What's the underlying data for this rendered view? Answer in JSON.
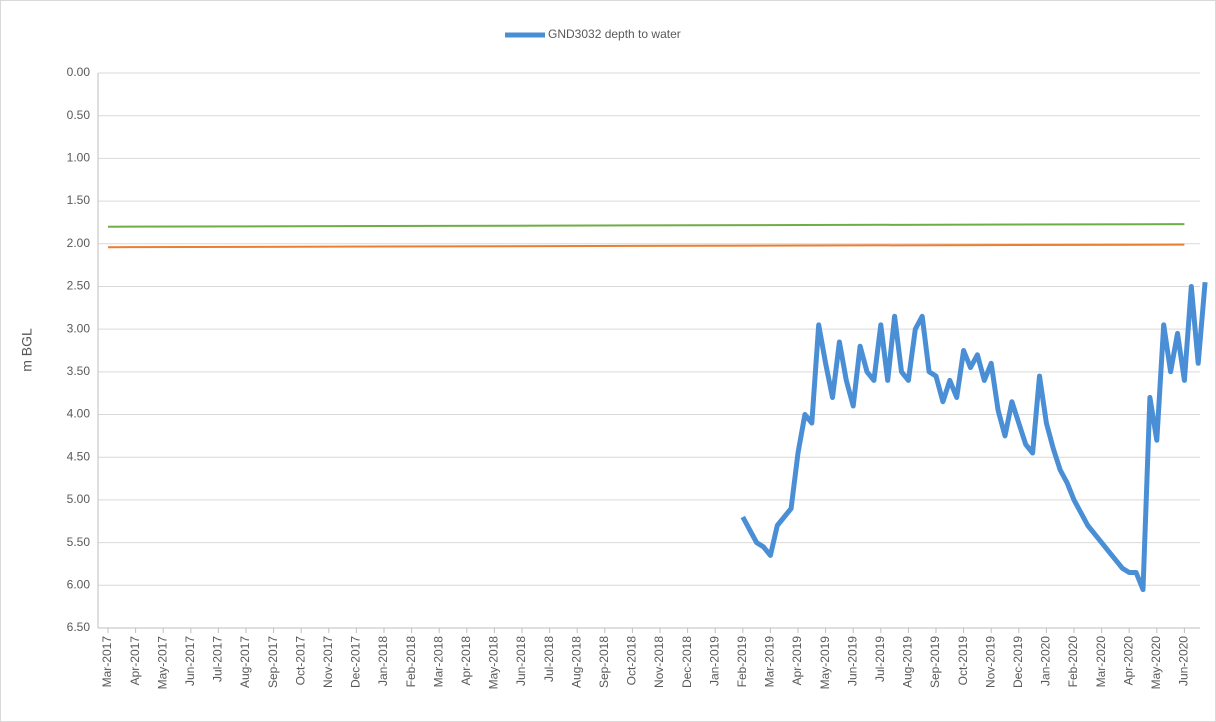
{
  "chart_data": {
    "type": "line",
    "ylabel": "m BGL",
    "ylim": [
      0,
      6.5
    ],
    "y_inverted": true,
    "yticks": [
      {
        "value": 0,
        "label": "0.00"
      },
      {
        "value": 0.5,
        "label": "0.50"
      },
      {
        "value": 1,
        "label": "1.00"
      },
      {
        "value": 1.5,
        "label": "1.50"
      },
      {
        "value": 2,
        "label": "2.00"
      },
      {
        "value": 2.5,
        "label": "2.50"
      },
      {
        "value": 3,
        "label": "3.00"
      },
      {
        "value": 3.5,
        "label": "3.50"
      },
      {
        "value": 4,
        "label": "4.00"
      },
      {
        "value": 4.5,
        "label": "4.50"
      },
      {
        "value": 5,
        "label": "5.00"
      },
      {
        "value": 5.5,
        "label": "5.50"
      },
      {
        "value": 6,
        "label": "6.00"
      },
      {
        "value": 6.5,
        "label": "6.50"
      }
    ],
    "grid": true,
    "legend": "top",
    "categories": [
      "Mar-2017",
      "Apr-2017",
      "May-2017",
      "Jun-2017",
      "Jul-2017",
      "Aug-2017",
      "Sep-2017",
      "Oct-2017",
      "Nov-2017",
      "Dec-2017",
      "Jan-2018",
      "Feb-2018",
      "Mar-2018",
      "Apr-2018",
      "May-2018",
      "Jun-2018",
      "Jul-2018",
      "Aug-2018",
      "Sep-2018",
      "Oct-2018",
      "Nov-2018",
      "Dec-2018",
      "Jan-2019",
      "Feb-2019",
      "Mar-2019",
      "Apr-2019",
      "May-2019",
      "Jun-2019",
      "Jul-2019",
      "Aug-2019",
      "Sep-2019",
      "Oct-2019",
      "Nov-2019",
      "Dec-2019",
      "Jan-2020",
      "Feb-2020",
      "Mar-2020",
      "Apr-2020",
      "May-2020",
      "Jun-2020"
    ],
    "series": [
      {
        "name": "GND3032 depth to water",
        "color": "#4a8fd6",
        "x": [
          "Feb-2019",
          "Feb-2019",
          "Feb-2019",
          "Feb-2019",
          "Mar-2019",
          "Mar-2019",
          "Mar-2019",
          "Mar-2019",
          "Apr-2019",
          "Apr-2019",
          "Apr-2019",
          "Apr-2019",
          "May-2019",
          "May-2019",
          "May-2019",
          "May-2019",
          "Jun-2019",
          "Jun-2019",
          "Jun-2019",
          "Jun-2019",
          "Jul-2019",
          "Jul-2019",
          "Jul-2019",
          "Jul-2019",
          "Aug-2019",
          "Aug-2019",
          "Aug-2019",
          "Aug-2019",
          "Sep-2019",
          "Sep-2019",
          "Sep-2019",
          "Sep-2019",
          "Oct-2019",
          "Oct-2019",
          "Oct-2019",
          "Oct-2019",
          "Nov-2019",
          "Nov-2019",
          "Nov-2019",
          "Nov-2019",
          "Dec-2019",
          "Dec-2019",
          "Dec-2019",
          "Dec-2019",
          "Jan-2020",
          "Jan-2020",
          "Jan-2020",
          "Jan-2020",
          "Feb-2020",
          "Feb-2020",
          "Feb-2020",
          "Feb-2020",
          "Mar-2020",
          "Mar-2020",
          "Mar-2020",
          "Mar-2020",
          "Apr-2020",
          "Apr-2020",
          "Apr-2020",
          "Apr-2020",
          "May-2020",
          "May-2020",
          "May-2020",
          "May-2020",
          "Jun-2020",
          "Jun-2020",
          "Jun-2020",
          "Jun-2020"
        ],
        "values": [
          5.2,
          5.35,
          5.5,
          5.55,
          5.65,
          5.3,
          5.2,
          5.1,
          4.45,
          4.0,
          4.1,
          2.95,
          3.4,
          3.8,
          3.15,
          3.6,
          3.9,
          3.2,
          3.5,
          3.6,
          2.95,
          3.6,
          2.85,
          3.5,
          3.6,
          3.0,
          2.85,
          3.5,
          3.55,
          3.85,
          3.6,
          3.8,
          3.25,
          3.45,
          3.3,
          3.6,
          3.4,
          3.95,
          4.25,
          3.85,
          4.1,
          4.35,
          4.45,
          3.55,
          4.1,
          4.4,
          4.65,
          4.8,
          5.0,
          5.15,
          5.3,
          5.4,
          5.5,
          5.6,
          5.7,
          5.8,
          5.85,
          5.85,
          6.05,
          3.8,
          4.3,
          2.95,
          3.5,
          3.05,
          3.6,
          2.5,
          3.4,
          2.45
        ]
      },
      {
        "color": "#70ad47",
        "x": [
          "Mar-2017",
          "Jun-2020"
        ],
        "values": [
          1.8,
          1.77
        ]
      },
      {
        "color": "#ed7d31",
        "x": [
          "Mar-2017",
          "Jun-2020"
        ],
        "values": [
          2.04,
          2.01
        ]
      }
    ]
  }
}
